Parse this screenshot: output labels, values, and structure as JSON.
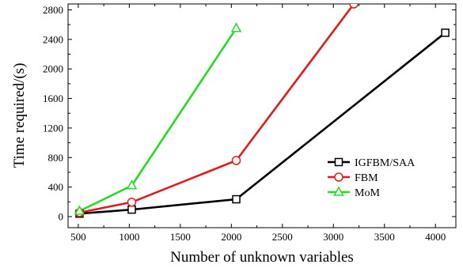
{
  "chart_data": {
    "type": "line",
    "title": "",
    "xlabel": "Number of unknown variables",
    "ylabel": "Time required/(s)",
    "xlim": [
      400,
      4200
    ],
    "ylim": [
      -150,
      2880
    ],
    "xticks": [
      500,
      1000,
      1500,
      2000,
      2500,
      3000,
      3500,
      4000
    ],
    "yticks": [
      0,
      400,
      800,
      1200,
      1600,
      2000,
      2400,
      2800
    ],
    "grid": false,
    "legend_position": "right",
    "series": [
      {
        "name": "IGFBM/SAA",
        "color": "#000000",
        "marker": "square",
        "x": [
          512,
          1024,
          2048,
          4096
        ],
        "y": [
          40,
          95,
          235,
          2490
        ]
      },
      {
        "name": "FBM",
        "color": "#e31a1c",
        "marker": "circle",
        "x": [
          512,
          1024,
          2048,
          3200
        ],
        "y": [
          55,
          195,
          760,
          2880
        ]
      },
      {
        "name": "MoM",
        "color": "#22dd22",
        "marker": "triangle",
        "x": [
          512,
          1024,
          2048
        ],
        "y": [
          75,
          420,
          2550
        ]
      }
    ]
  }
}
